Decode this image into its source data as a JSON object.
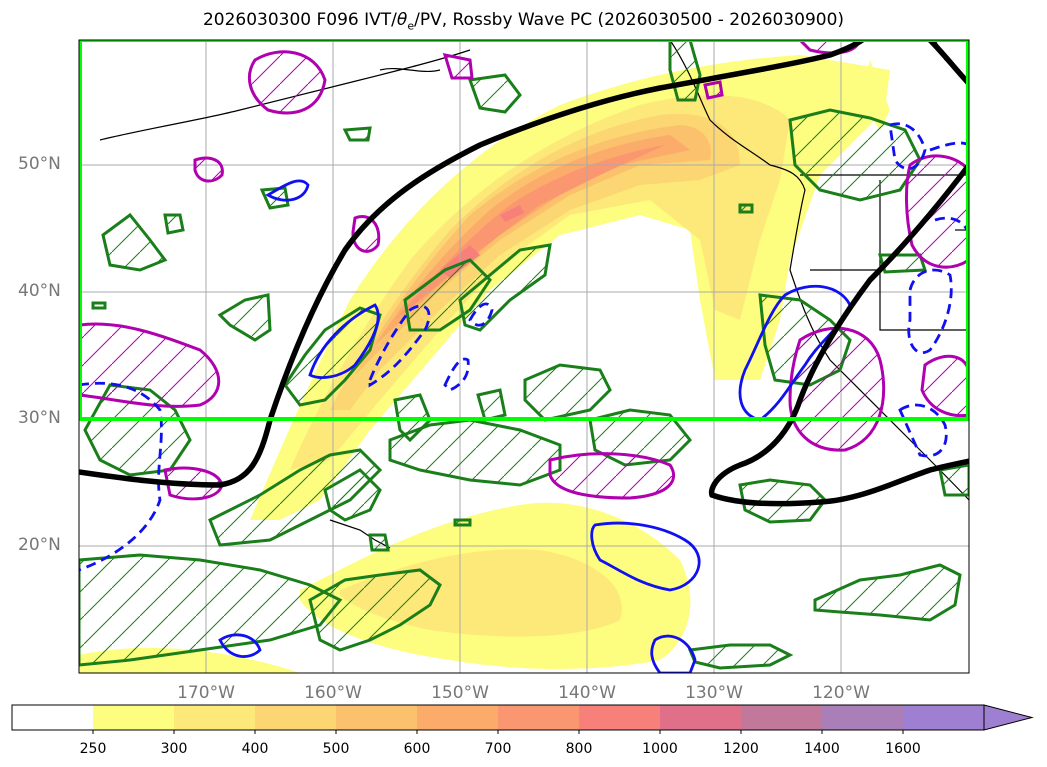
{
  "map": {
    "title_prefix": "2026030300 F096 IVT/",
    "title_theta": "θ",
    "title_theta_sub": "e",
    "title_suffix": "/PV, Rossby Wave PC (2026030500 - 2026030900)",
    "lat_labels": [
      "50°N",
      "40°N",
      "30°N",
      "20°N"
    ],
    "lon_labels": [
      "170°W",
      "160°W",
      "150°W",
      "140°W",
      "130°W",
      "120°W"
    ],
    "colorbar": {
      "ticks": [
        "250",
        "300",
        "400",
        "500",
        "600",
        "700",
        "800",
        "1000",
        "1200",
        "1400",
        "1600"
      ],
      "colors": [
        "#ffffff",
        "#fdfd80",
        "#fde979",
        "#fbd672",
        "#fbc16d",
        "#fbab6a",
        "#fa9770",
        "#f8807a",
        "#e0708a",
        "#c2789a",
        "#aa7fb8",
        "#9e7fd1"
      ]
    },
    "legend_colors": {
      "box": "#00ff00",
      "positive_contour": "#1a7f1a",
      "negative_contour": "#b000b0",
      "dashed_contour": "#1010f0",
      "wave_line": "#000000"
    }
  }
}
